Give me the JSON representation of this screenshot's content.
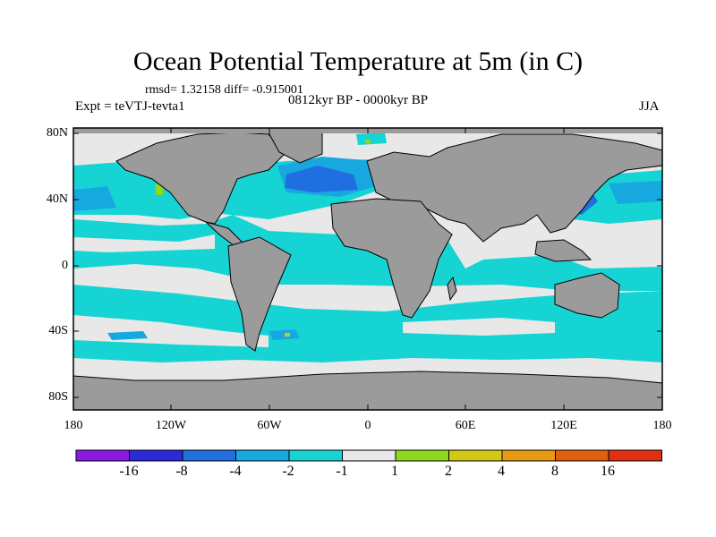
{
  "header": {
    "title": "Ocean Potential Temperature at 5m (in C)",
    "stats": "rmsd= 1.32158 diff= -0.915001",
    "experiment": "Expt = teVTJ-tevta1",
    "period": "0812kyr BP - 0000kyr BP",
    "season": "JJA"
  },
  "axes": {
    "lat_labels": [
      "80N",
      "40N",
      "0",
      "40S",
      "80S"
    ],
    "lon_labels": [
      "180",
      "120W",
      "60W",
      "0",
      "60E",
      "120E",
      "180"
    ]
  },
  "legend": {
    "labels": [
      "-16",
      "-8",
      "-4",
      "-2",
      "-1",
      "1",
      "2",
      "4",
      "8",
      "16"
    ],
    "colors": [
      "#8a1ae0",
      "#2a2ad8",
      "#1f6fe0",
      "#18a8e0",
      "#16d4d4",
      "#e8e8e8",
      "#90d81e",
      "#d4c814",
      "#e89a10",
      "#e06010",
      "#e03010"
    ]
  },
  "colors": {
    "land": "#9b9b9b",
    "ocean_neutral": "#e8e8e8",
    "cyan": "#16d4d4",
    "light_blue": "#18a8e0",
    "blue": "#1f6fe0",
    "green": "#90d81e",
    "yellow": "#d4c814"
  }
}
